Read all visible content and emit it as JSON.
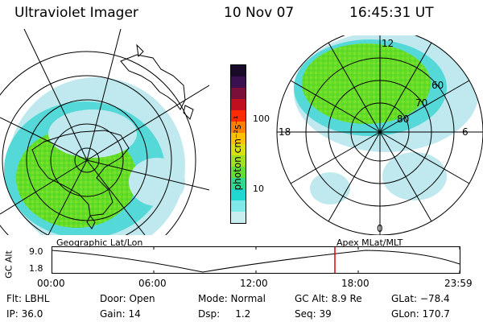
{
  "header": {
    "title": "Ultraviolet Imager",
    "date": "10 Nov 07",
    "time": "16:45:31 UT"
  },
  "colorbar": {
    "unit_label": "photon cm⁻²s⁻¹",
    "ticks": [
      "100",
      "10"
    ],
    "colors_top_to_bottom": [
      "#1a0a2a",
      "#3a1050",
      "#7a103a",
      "#c01020",
      "#ff2a00",
      "#ff8000",
      "#ffc000",
      "#d8e010",
      "#a0e020",
      "#60e030",
      "#30d890",
      "#20d8d0",
      "#80e8e8",
      "#c8eef0"
    ]
  },
  "left_map": {
    "caption": "Geographic Lat/Lon"
  },
  "right_map": {
    "caption": "Apex MLat/MLT",
    "mlt_labels": {
      "top": "12",
      "left": "18",
      "right": "6",
      "bottom": "0"
    },
    "mlat_labels": [
      "60",
      "70",
      "80"
    ]
  },
  "timeline": {
    "y_axis_label": "GC Alt",
    "y_ticks": [
      "9.0",
      "1.8"
    ],
    "x_ticks": [
      "00:00",
      "06:00",
      "12:00",
      "18:00",
      "23:59"
    ],
    "current_marker_color": "#e00000"
  },
  "info": {
    "filter": "Flt: LBHL",
    "ip": "IP: 36.0",
    "door": "Door: Open",
    "gain": "Gain: 14",
    "mode": "Mode: Normal",
    "dsp": "Dsp:     1.2",
    "gc_alt": "GC Alt: 8.9 Re",
    "seq": "Seq: 39",
    "glat": "GLat: −78.4",
    "glon": "GLon: 170.7"
  },
  "colors": {
    "aurora_green": "#66dd22",
    "aurora_cyan": "#44dddd",
    "aurora_pale": "#bfe9ee"
  }
}
